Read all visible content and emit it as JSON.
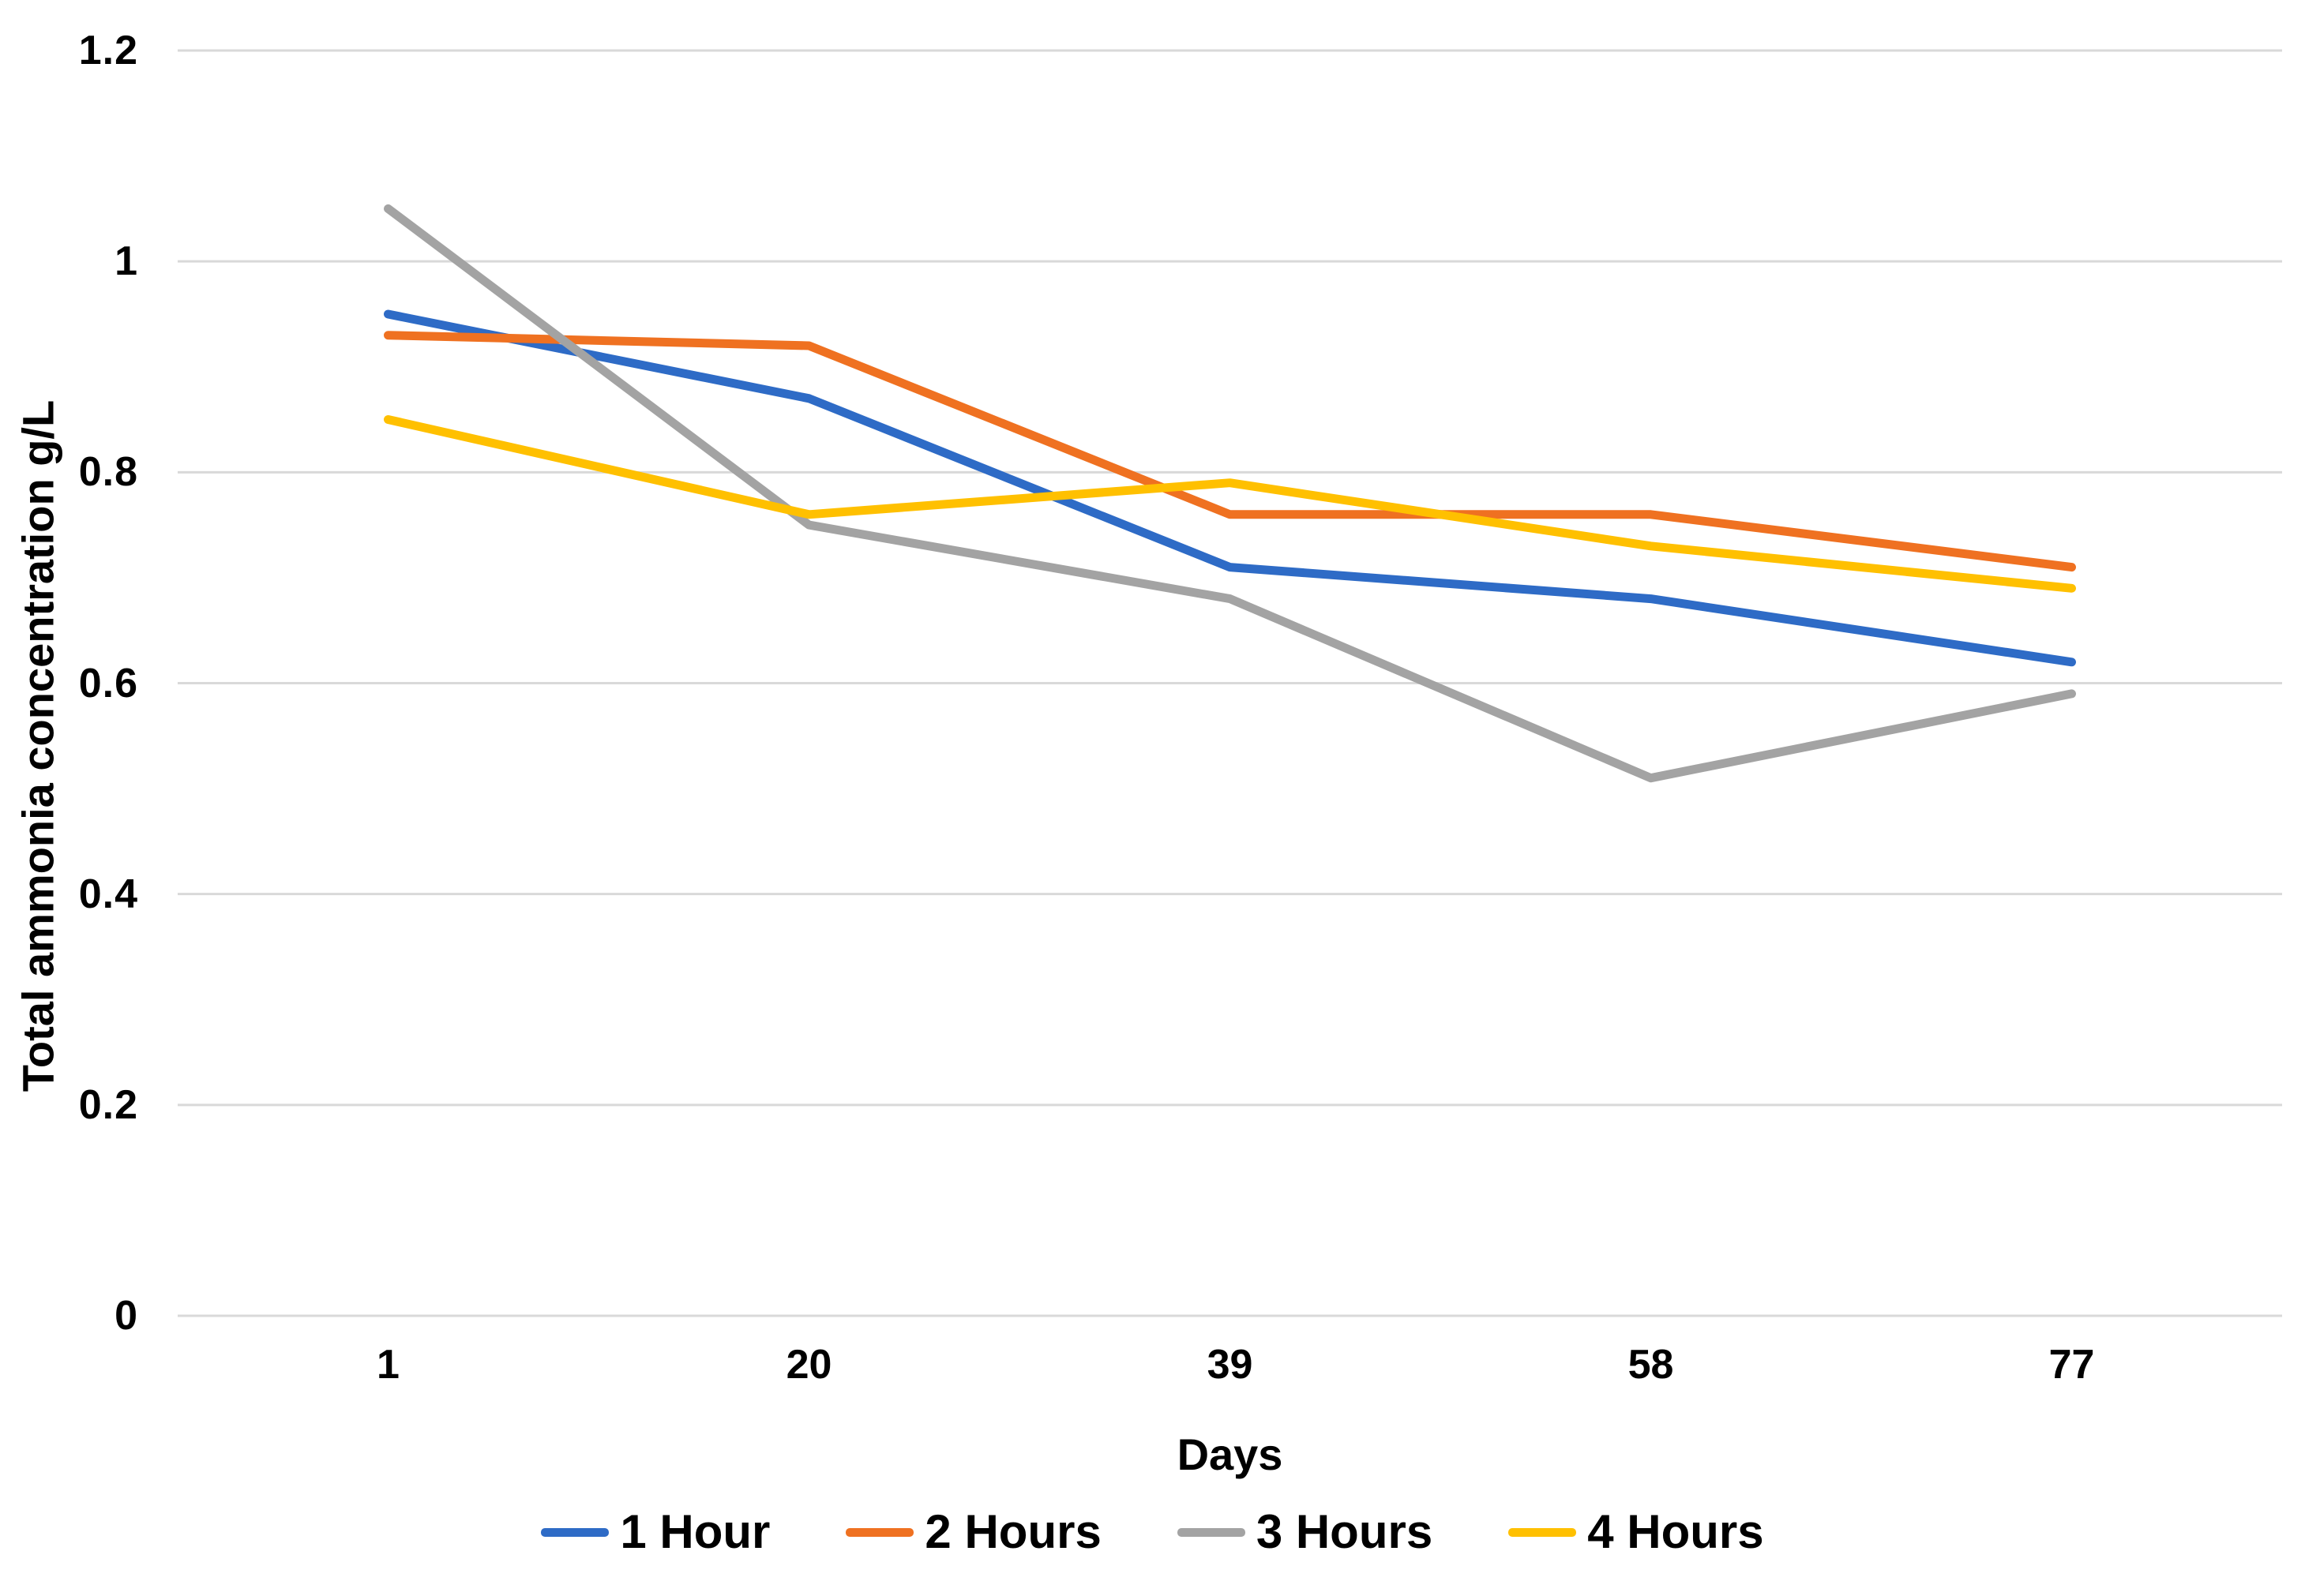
{
  "chart_data": {
    "type": "line",
    "title": "",
    "categories": [
      "1",
      "20",
      "39",
      "58",
      "77"
    ],
    "series": [
      {
        "name": "1 Hour",
        "color": "#2E6BC6",
        "values": [
          0.95,
          0.87,
          0.71,
          0.68,
          0.62
        ]
      },
      {
        "name": "2 Hours",
        "color": "#EF7121",
        "values": [
          0.93,
          0.92,
          0.76,
          0.76,
          0.71
        ]
      },
      {
        "name": "3 Hours",
        "color": "#A3A3A3",
        "values": [
          1.05,
          0.75,
          0.68,
          0.51,
          0.59
        ]
      },
      {
        "name": "4 Hours",
        "color": "#FFC000",
        "values": [
          0.85,
          0.76,
          0.79,
          0.73,
          0.69
        ]
      }
    ],
    "xlabel": "Days",
    "ylabel": "Total ammonia concentration g/L",
    "ylim": [
      0,
      1.2
    ],
    "yticks": [
      {
        "value": 0,
        "label": "0"
      },
      {
        "value": 0.2,
        "label": "0.2"
      },
      {
        "value": 0.4,
        "label": "0.4"
      },
      {
        "value": 0.6,
        "label": "0.6"
      },
      {
        "value": 0.8,
        "label": "0.8"
      },
      {
        "value": 1,
        "label": "1"
      },
      {
        "value": 1.2,
        "label": "1.2"
      }
    ],
    "grid": "horizontal",
    "gridline_color": "#D9D9D9",
    "background_color": "#FFFFFF",
    "text_color": "#000000",
    "legend_position": "bottom",
    "line_width": 11
  }
}
